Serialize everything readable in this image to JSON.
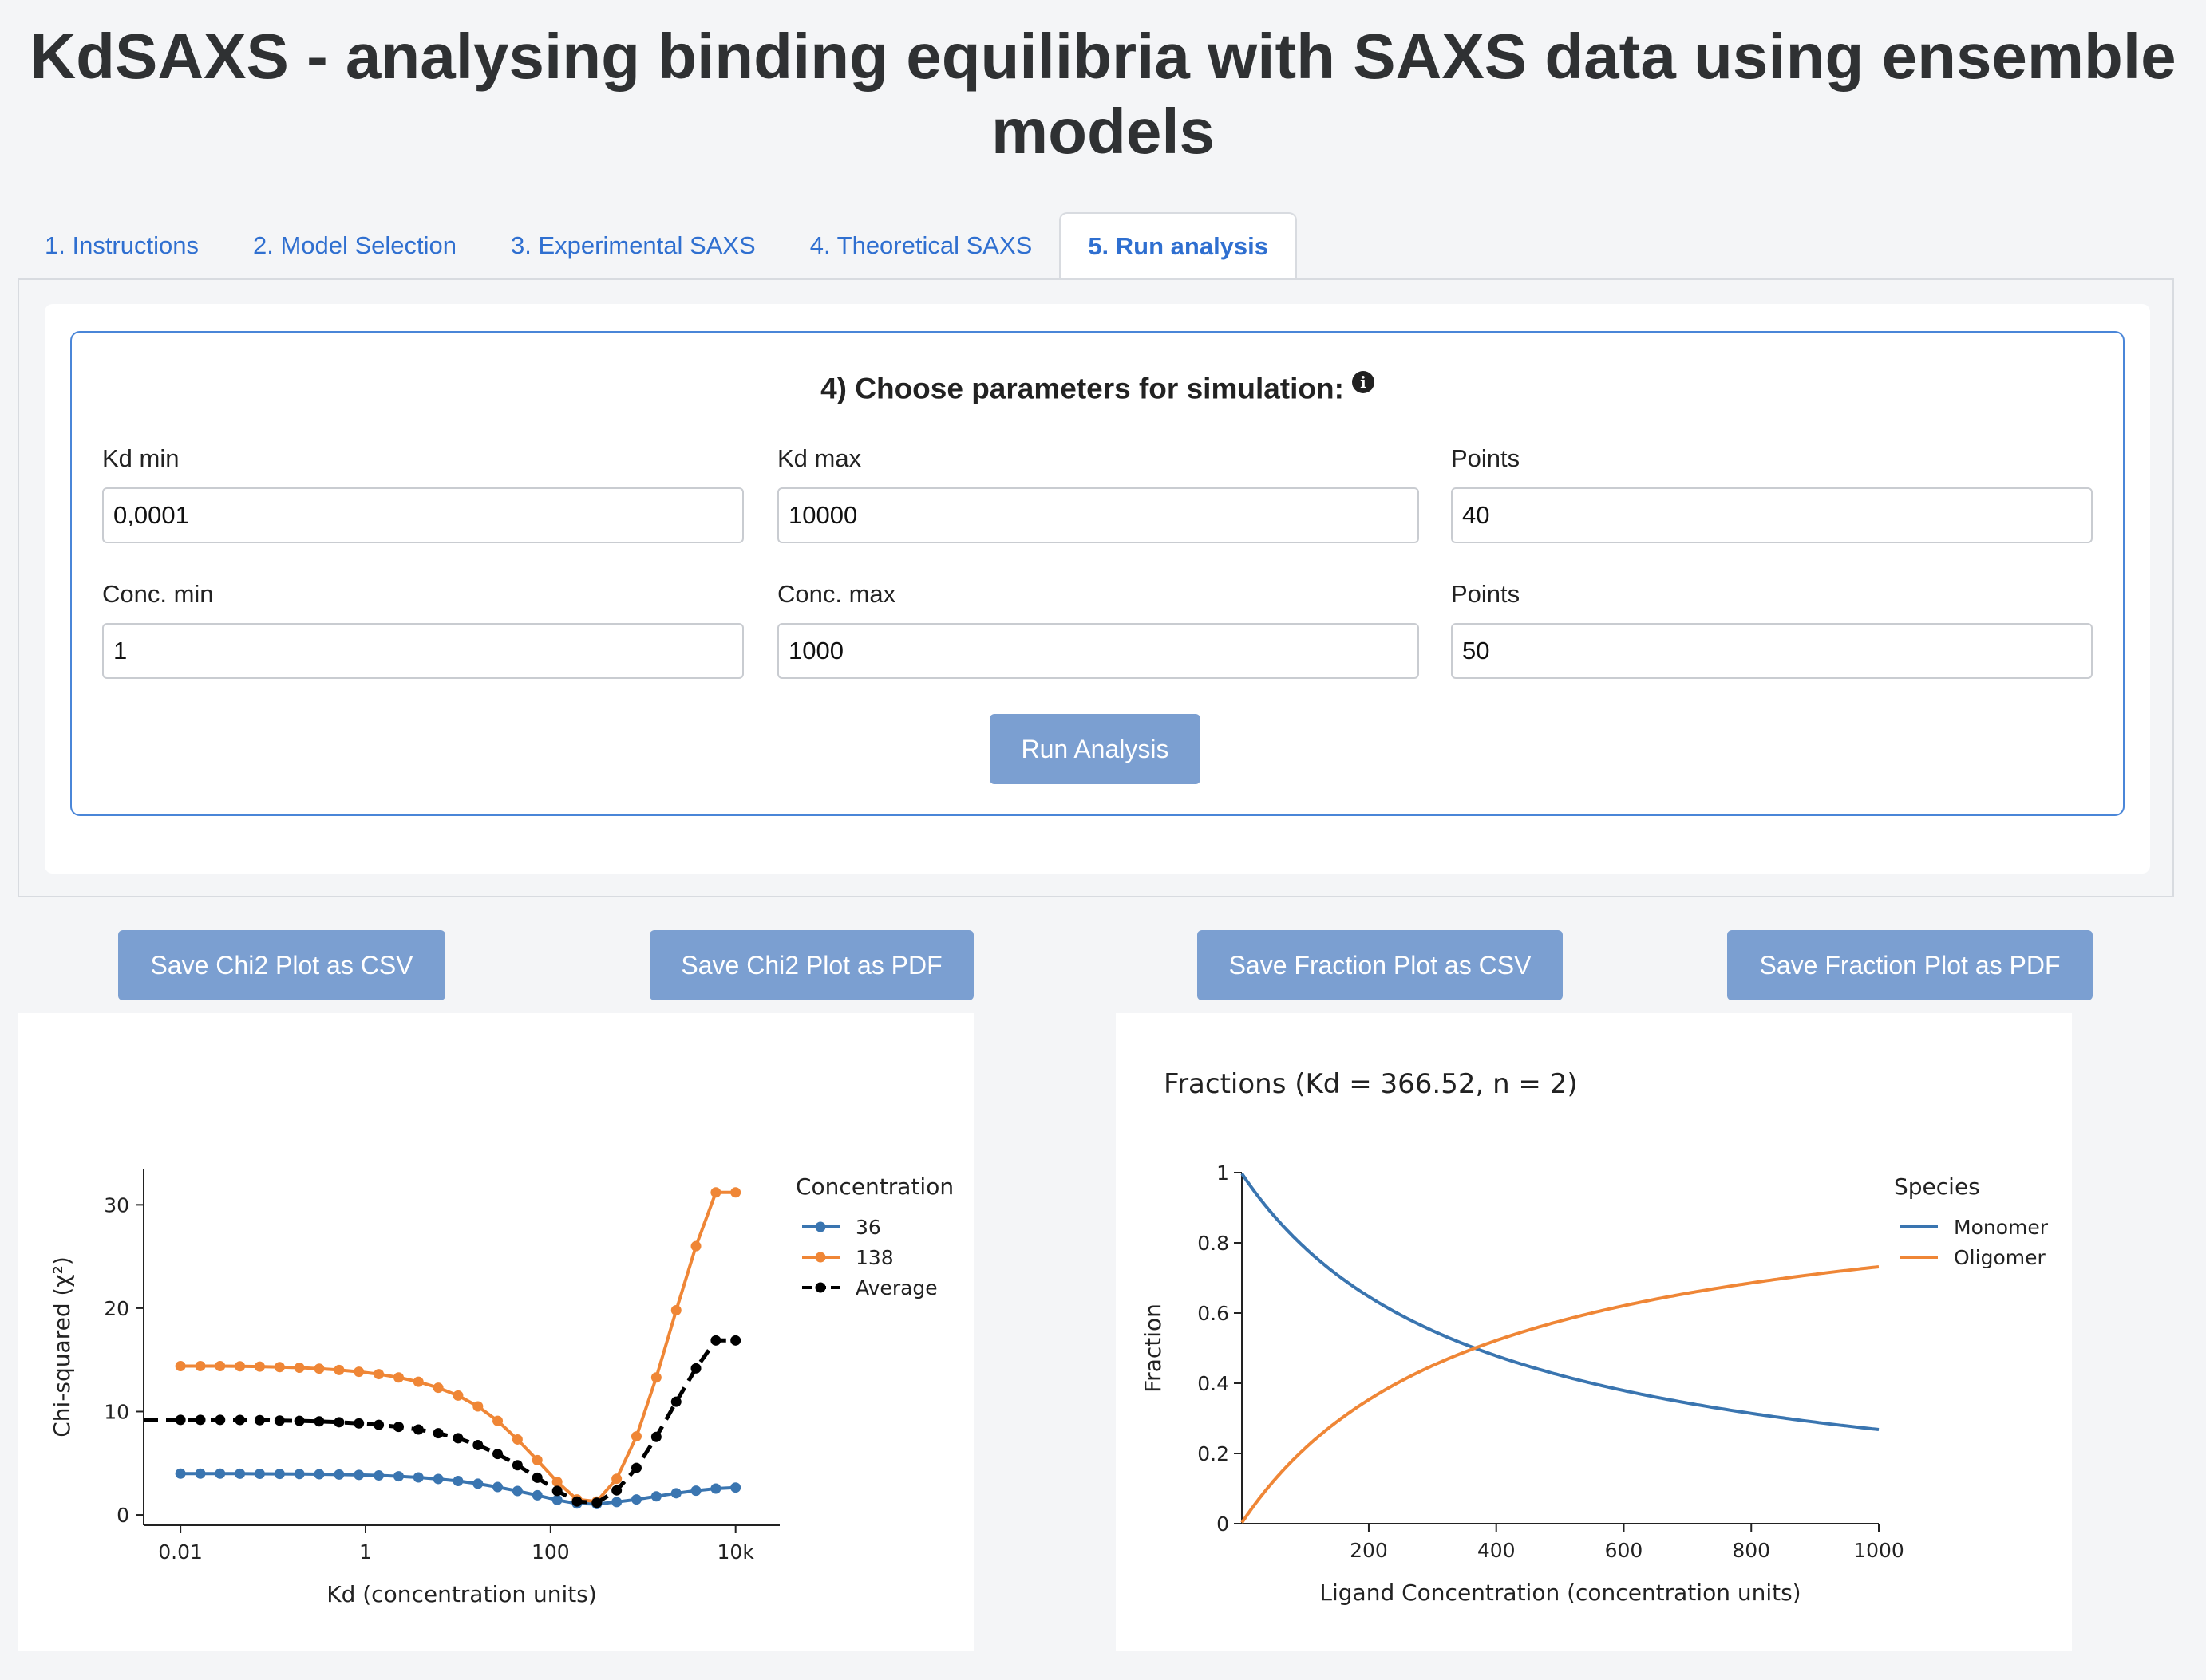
{
  "page": {
    "title": "KdSAXS - analysing binding equilibria with SAXS data using ensemble models"
  },
  "tabs": [
    {
      "label": "1. Instructions",
      "active": false
    },
    {
      "label": "2. Model Selection",
      "active": false
    },
    {
      "label": "3. Experimental SAXS",
      "active": false
    },
    {
      "label": "4. Theoretical SAXS",
      "active": false
    },
    {
      "label": "5. Run analysis",
      "active": true
    }
  ],
  "params": {
    "heading": "4) Choose parameters for simulation:",
    "info_icon": "info-circle-icon",
    "kd_min": {
      "label": "Kd min",
      "value": "0,0001"
    },
    "kd_max": {
      "label": "Kd max",
      "value": "10000"
    },
    "kd_points": {
      "label": "Points",
      "value": "40"
    },
    "conc_min": {
      "label": "Conc. min",
      "value": "1"
    },
    "conc_max": {
      "label": "Conc. max",
      "value": "1000"
    },
    "conc_points": {
      "label": "Points",
      "value": "50"
    },
    "run_label": "Run Analysis"
  },
  "buttons": {
    "save_chi2_csv": "Save Chi2 Plot as CSV",
    "save_chi2_pdf": "Save Chi2 Plot as PDF",
    "save_fraction_csv": "Save Fraction Plot as CSV",
    "save_fraction_pdf": "Save Fraction Plot as PDF"
  },
  "colors": {
    "accent": "#2f6fd0",
    "button": "#7b9fd1",
    "blue": "#3a75b0",
    "orange": "#ef8636",
    "black": "#000000"
  },
  "chart_data": [
    {
      "type": "line",
      "title": "",
      "xlabel": "Kd (concentration units)",
      "ylabel": "Chi-squared (χ²)",
      "xscale": "log",
      "xlim": [
        0.004,
        30000
      ],
      "ylim": [
        -1,
        33.5
      ],
      "xticks": [
        0.01,
        1,
        100,
        10000
      ],
      "xticklabels": [
        "0.01",
        "1",
        "100",
        "10k"
      ],
      "yticks": [
        0,
        10,
        20,
        30
      ],
      "legend": {
        "title": "Concentration",
        "position": "right"
      },
      "x": [
        0.01,
        0.0164,
        0.0268,
        0.0439,
        0.0719,
        0.118,
        0.193,
        0.316,
        0.518,
        0.848,
        1.39,
        2.28,
        3.73,
        6.11,
        10,
        16.4,
        26.8,
        43.9,
        71.9,
        118,
        193,
        316,
        518,
        848,
        1390,
        2280,
        3730,
        6110,
        10000
      ],
      "series": [
        {
          "name": "36",
          "color": "#3a75b0",
          "dash": "solid",
          "values": [
            4.0,
            4.0,
            4.0,
            3.99,
            3.98,
            3.97,
            3.96,
            3.94,
            3.91,
            3.87,
            3.82,
            3.74,
            3.63,
            3.48,
            3.28,
            3.02,
            2.7,
            2.32,
            1.9,
            1.45,
            1.1,
            1.05,
            1.25,
            1.5,
            1.8,
            2.1,
            2.35,
            2.55,
            2.65
          ]
        },
        {
          "name": "138",
          "color": "#ef8636",
          "dash": "solid",
          "values": [
            14.4,
            14.4,
            14.4,
            14.38,
            14.35,
            14.3,
            14.24,
            14.15,
            14.02,
            13.85,
            13.62,
            13.3,
            12.88,
            12.3,
            11.55,
            10.5,
            9.1,
            7.3,
            5.3,
            3.2,
            1.5,
            1.3,
            3.5,
            7.6,
            13.3,
            19.8,
            26.0,
            31.2,
            31.2
          ]
        },
        {
          "name": "Average",
          "color": "#000000",
          "dash": "dashed",
          "values": [
            9.2,
            9.2,
            9.2,
            9.19,
            9.17,
            9.13,
            9.1,
            9.05,
            8.97,
            8.86,
            8.72,
            8.52,
            8.26,
            7.9,
            7.42,
            6.76,
            5.9,
            4.81,
            3.6,
            2.33,
            1.3,
            1.18,
            2.38,
            4.55,
            7.55,
            10.95,
            14.18,
            16.88,
            16.88
          ]
        }
      ]
    },
    {
      "type": "line",
      "title": "Fractions (Kd = 366.52, n = 2)",
      "xlabel": "Ligand Concentration (concentration units)",
      "ylabel": "Fraction",
      "xlim": [
        1,
        1000
      ],
      "ylim": [
        0,
        1
      ],
      "xticks": [
        200,
        400,
        600,
        800,
        1000
      ],
      "yticks": [
        0,
        0.2,
        0.4,
        0.6,
        0.8,
        1
      ],
      "yticklabels": [
        "0",
        "0.2",
        "0.4",
        "0.6",
        "0.8",
        "1"
      ],
      "legend": {
        "title": "Species",
        "position": "right"
      },
      "Kd": 366.52,
      "n": 2,
      "series": [
        {
          "name": "Monomer",
          "color": "#3a75b0"
        },
        {
          "name": "Oligomer",
          "color": "#ef8636"
        }
      ]
    }
  ]
}
